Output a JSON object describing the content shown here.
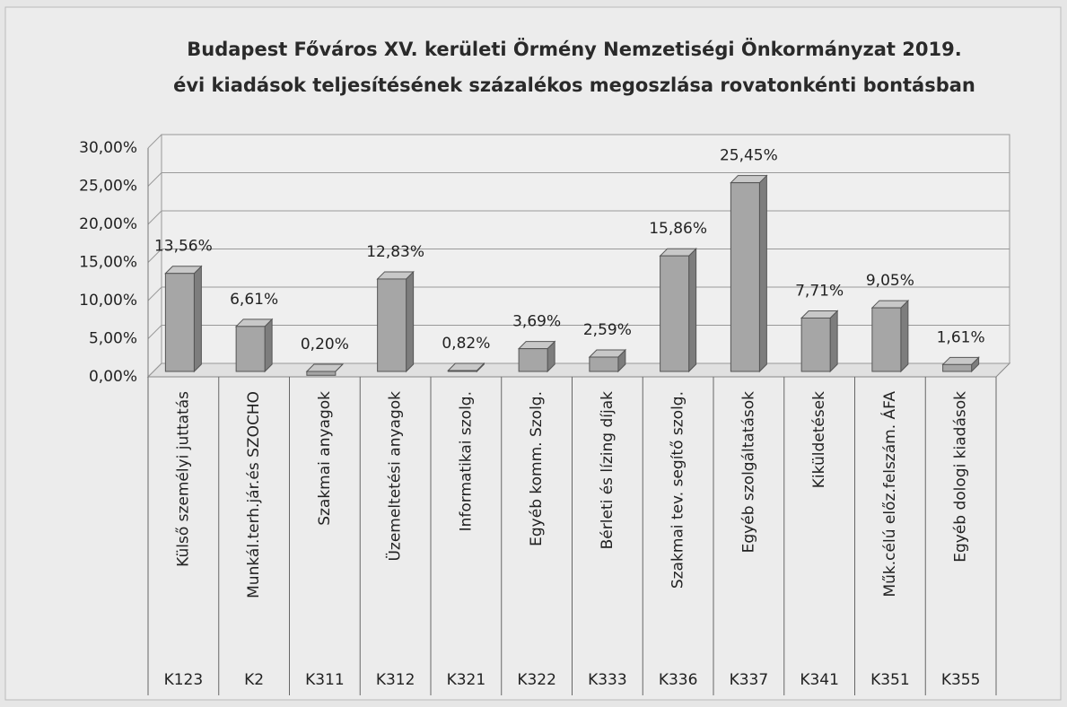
{
  "chart_data": {
    "type": "bar3d",
    "title": "Budapest Főváros XV. kerületi Örmény Nemzetiségi Önkormányzat 2019.",
    "subtitle": "évi kiadások teljesítésének százalékos megoszlása rovatonkénti bontásban",
    "categories": [
      "Külső személyi juttatás",
      "Munkál.terh.jár.és SZOCHO",
      "Szakmai anyagok",
      "Üzemeltetési anyagok",
      "Informatikai szolg.",
      "Egyéb komm. Szolg.",
      "Bérleti és lízing díjak",
      "Szakmai tev. segítő szolg.",
      "Egyéb szolgáltatások",
      "Kiküldetések",
      "Műk.célú előz.felszám. ÁFA",
      "Egyéb dologi kiadások"
    ],
    "category_codes": [
      "K123",
      "K2",
      "K311",
      "K312",
      "K321",
      "K322",
      "K333",
      "K336",
      "K337",
      "K341",
      "K351",
      "K355"
    ],
    "values": [
      13.56,
      6.61,
      0.2,
      12.83,
      0.82,
      3.69,
      2.59,
      15.86,
      25.45,
      7.71,
      9.05,
      1.61
    ],
    "value_labels": [
      "13,56%",
      "6,61%",
      "0,20%",
      "12,83%",
      "0,82%",
      "3,69%",
      "2,59%",
      "15,86%",
      "25,45%",
      "7,71%",
      "9,05%",
      "1,61%"
    ],
    "color": "#a6a6a6",
    "ylim": [
      0,
      30
    ],
    "yticks": [
      {
        "value": 0,
        "label": "0,00%"
      },
      {
        "value": 5,
        "label": "5,00%"
      },
      {
        "value": 10,
        "label": "10,00%"
      },
      {
        "value": 15,
        "label": "15,00%"
      },
      {
        "value": 20,
        "label": "20,00%"
      },
      {
        "value": 25,
        "label": "25,00%"
      },
      {
        "value": 30,
        "label": "30,00%"
      }
    ],
    "grid": true
  }
}
